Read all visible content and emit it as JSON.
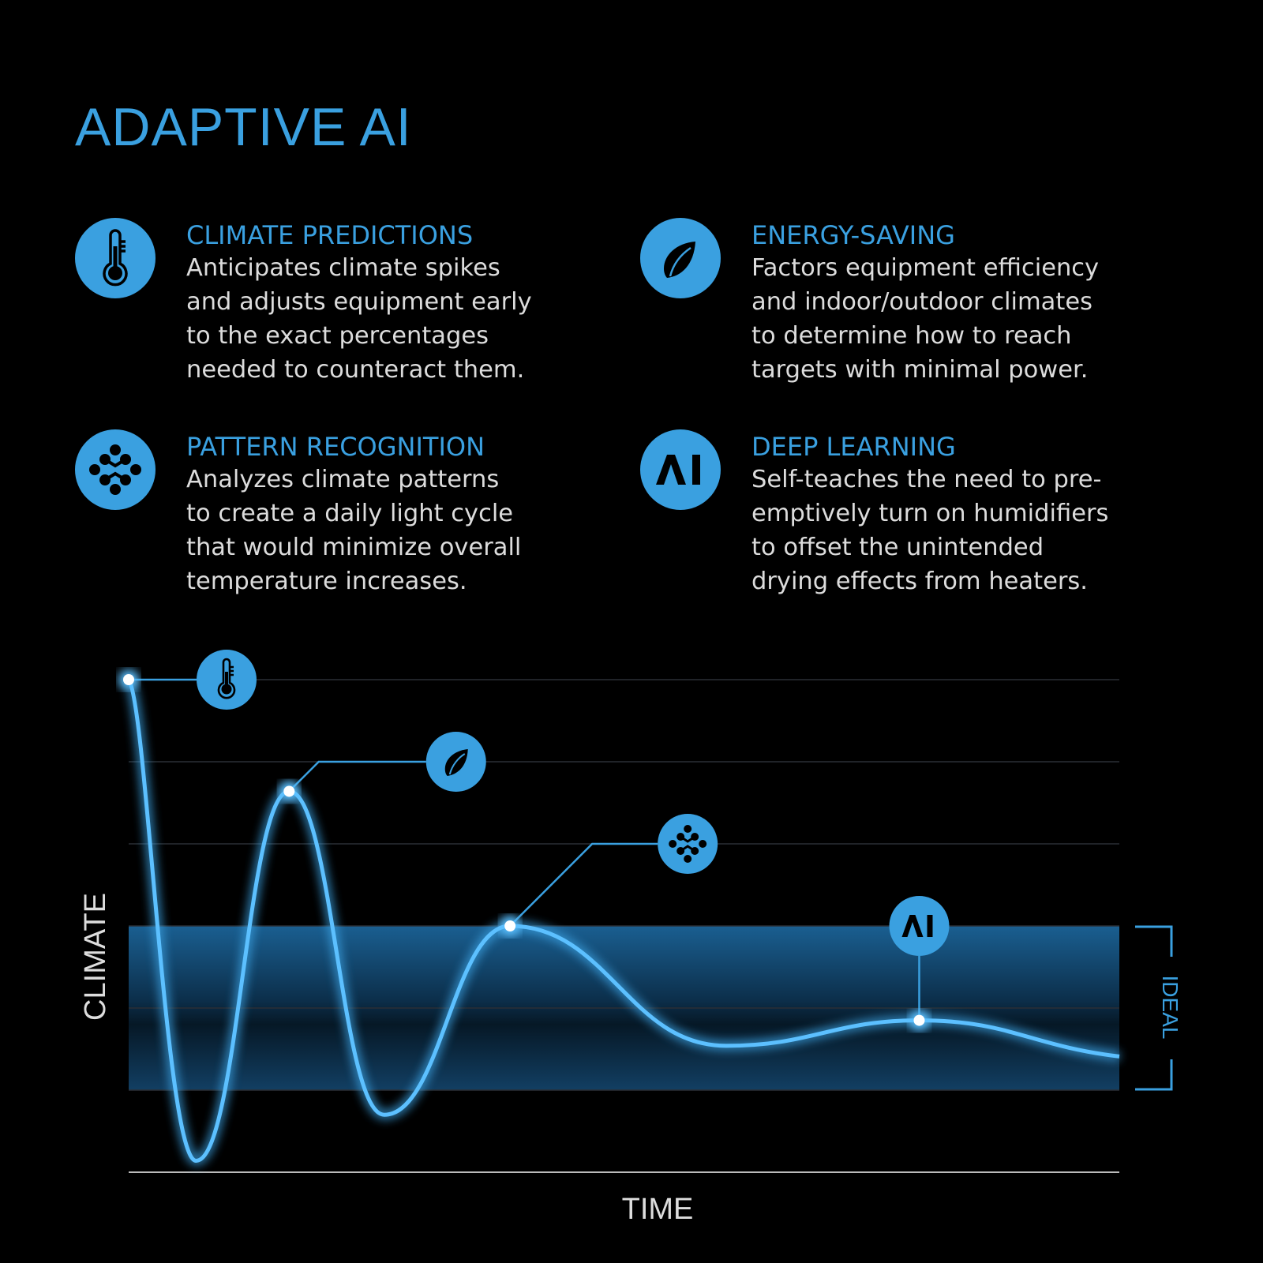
{
  "title": "ADAPTIVE AI",
  "accent_color": "#3aa0e0",
  "features": [
    {
      "icon": "thermometer-icon",
      "heading": "CLIMATE PREDICTIONS",
      "lines": [
        "Anticipates climate spikes",
        "and adjusts equipment early",
        "to the exact percentages",
        "needed to counteract them."
      ]
    },
    {
      "icon": "leaf-icon",
      "heading": "ENERGY-SAVING",
      "lines": [
        "Factors equipment efficiency",
        "and indoor/outdoor climates",
        "to determine how to reach",
        "targets with minimal power."
      ]
    },
    {
      "icon": "pattern-dots-icon",
      "heading": "PATTERN RECOGNITION",
      "lines": [
        "Analyzes climate patterns",
        "to create a daily light cycle",
        "that would minimize overall",
        "temperature increases."
      ]
    },
    {
      "icon": "ai-icon",
      "heading": "DEEP LEARNING",
      "lines": [
        "Self-teaches the need to pre-",
        "emptively turn on humidifiers",
        "to offset the unintended",
        "drying effects from heaters."
      ]
    }
  ],
  "chart_data": {
    "type": "line",
    "xlabel": "TIME",
    "ylabel": "CLIMATE",
    "band_label": "IDEAL",
    "xlim": [
      0,
      100
    ],
    "ylim": [
      0,
      6
    ],
    "band": [
      1,
      3
    ],
    "grid": true,
    "series": [
      {
        "x": [
          0,
          6.8,
          16.2,
          25.8,
          38.5,
          60.3,
          79.8,
          100
        ],
        "y": [
          6,
          0.14,
          4.64,
          0.7,
          3.0,
          1.54,
          1.85,
          1.41
        ]
      }
    ],
    "callouts": [
      {
        "point_index": 0,
        "icon": "thermometer-icon"
      },
      {
        "point_index": 2,
        "icon": "leaf-icon"
      },
      {
        "point_index": 4,
        "icon": "pattern-dots-icon"
      },
      {
        "point_index": 6,
        "icon": "ai-icon"
      }
    ]
  }
}
